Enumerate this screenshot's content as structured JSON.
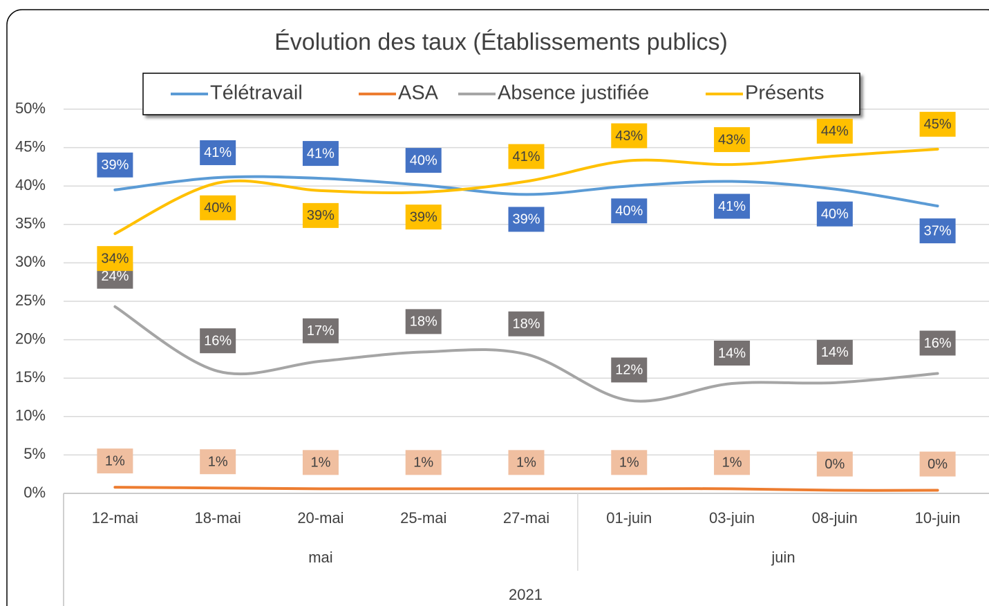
{
  "chart_data": {
    "type": "line",
    "title": "Évolution des taux (Établissements publics)",
    "categories": [
      "12-mai",
      "18-mai",
      "20-mai",
      "25-mai",
      "27-mai",
      "01-juin",
      "03-juin",
      "08-juin",
      "10-juin"
    ],
    "groups": [
      {
        "label": "mai",
        "span": 5
      },
      {
        "label": "juin",
        "span": 4
      }
    ],
    "year": "2021",
    "series": [
      {
        "name": "Télétravail",
        "color": "#5b9bd5",
        "label_color": "#4472c4",
        "label_text_color": "#ffffff",
        "values": [
          39.5,
          41.1,
          41.0,
          40.1,
          38.9,
          40.0,
          40.6,
          39.6,
          37.4
        ],
        "value_labels": [
          "39%",
          "41%",
          "41%",
          "40%",
          "39%",
          "40%",
          "41%",
          "40%",
          "37%"
        ]
      },
      {
        "name": "ASA",
        "color": "#ed7d31",
        "label_color": "#f0bfa0",
        "label_text_color": "#404040",
        "values": [
          0.8,
          0.7,
          0.6,
          0.6,
          0.6,
          0.6,
          0.6,
          0.4,
          0.4
        ],
        "value_labels": [
          "1%",
          "1%",
          "1%",
          "1%",
          "1%",
          "1%",
          "1%",
          "0%",
          "0%"
        ]
      },
      {
        "name": "Absence justifiée",
        "color": "#a5a5a5",
        "label_color": "#767171",
        "label_text_color": "#ffffff",
        "values": [
          24.3,
          15.9,
          17.2,
          18.4,
          18.1,
          12.1,
          14.3,
          14.4,
          15.6
        ],
        "value_labels": [
          "24%",
          "16%",
          "17%",
          "18%",
          "18%",
          "12%",
          "14%",
          "14%",
          "16%"
        ]
      },
      {
        "name": "Présents",
        "color": "#ffc000",
        "label_color": "#ffc000",
        "label_text_color": "#404040",
        "values": [
          33.8,
          40.4,
          39.4,
          39.2,
          40.6,
          43.3,
          42.8,
          43.9,
          44.8
        ],
        "value_labels": [
          "34%",
          "40%",
          "39%",
          "39%",
          "41%",
          "43%",
          "43%",
          "44%",
          "45%"
        ]
      }
    ],
    "ylim": [
      0,
      50
    ],
    "yticks": [
      {
        "value": 0,
        "label": "0%"
      },
      {
        "value": 5,
        "label": "5%"
      },
      {
        "value": 10,
        "label": "10%"
      },
      {
        "value": 15,
        "label": "15%"
      },
      {
        "value": 20,
        "label": "20%"
      },
      {
        "value": 25,
        "label": "25%"
      },
      {
        "value": 30,
        "label": "30%"
      },
      {
        "value": 35,
        "label": "35%"
      },
      {
        "value": 40,
        "label": "40%"
      },
      {
        "value": 45,
        "label": "45%"
      },
      {
        "value": 50,
        "label": "50%"
      }
    ],
    "grid": true,
    "legend": "top"
  }
}
